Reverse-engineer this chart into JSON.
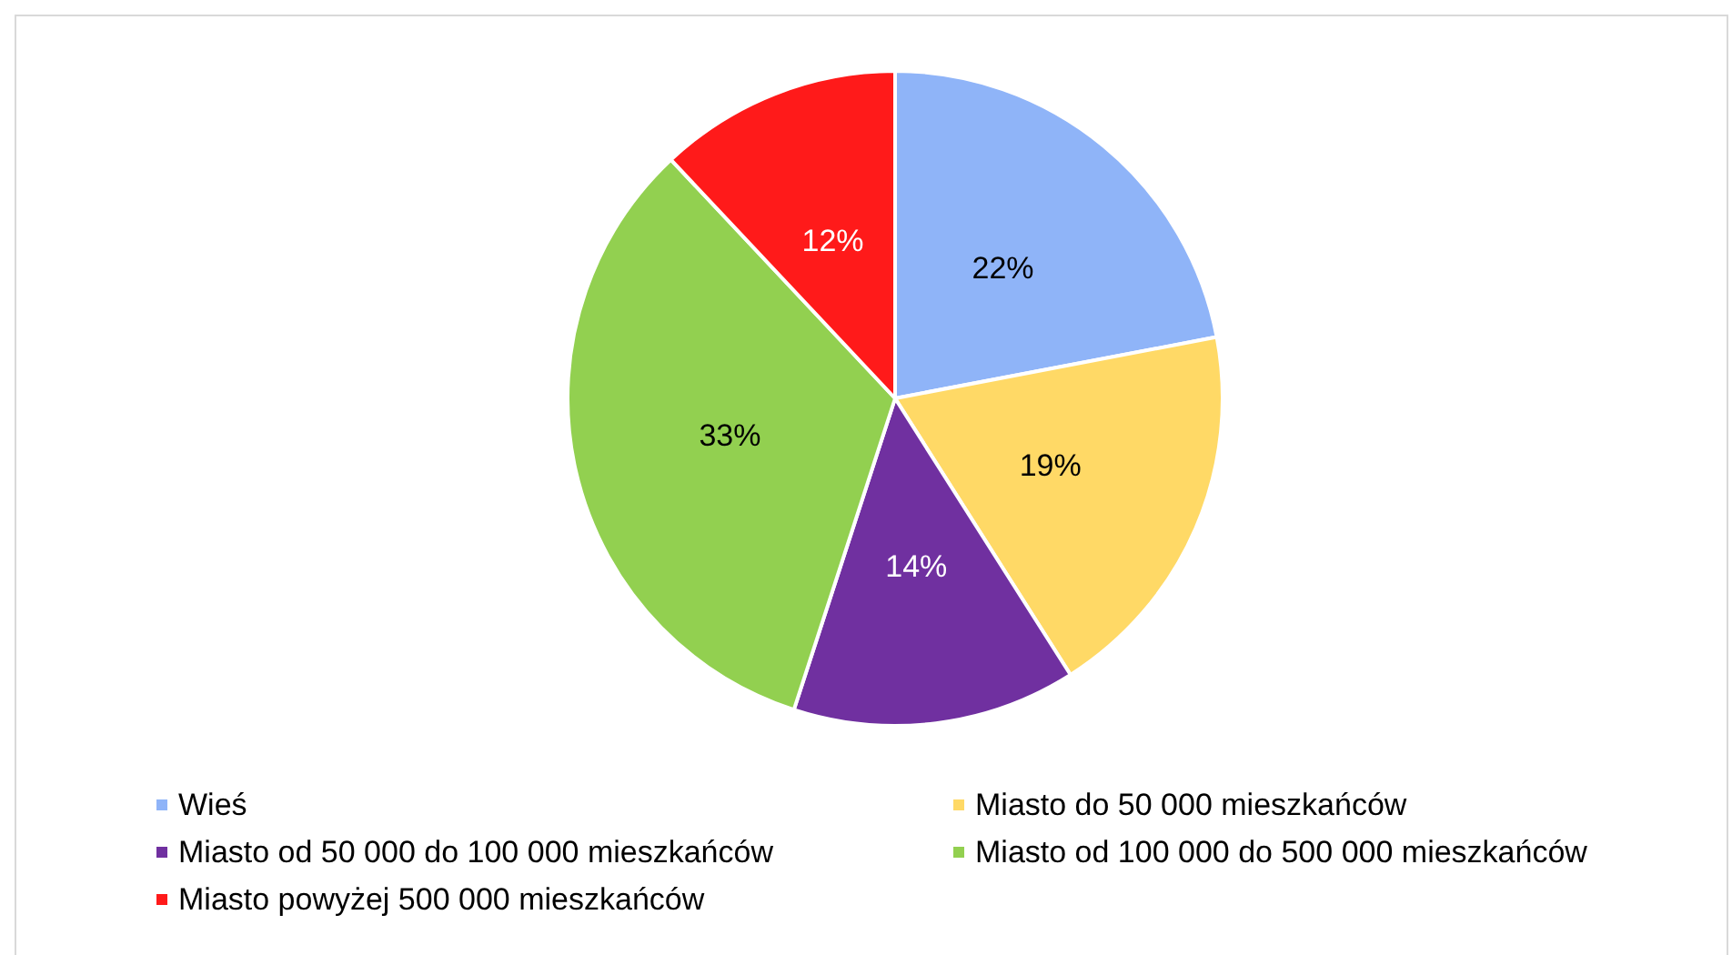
{
  "chart_data": {
    "type": "pie",
    "categories": [
      "Wieś",
      "Miasto do 50 000 mieszkańców",
      "Miasto od 50 000 do 100 000 mieszkańców",
      "Miasto od 100 000 do 500 000 mieszkańców",
      "Miasto powyżej 500 000 mieszkańców"
    ],
    "values": [
      22,
      19,
      14,
      33,
      12
    ],
    "colors": [
      "#8fb4f8",
      "#ffd966",
      "#7030a0",
      "#92d050",
      "#ff1a1a"
    ],
    "value_labels": [
      "22%",
      "19%",
      "14%",
      "33%",
      "12%"
    ],
    "legend": "bottom"
  }
}
